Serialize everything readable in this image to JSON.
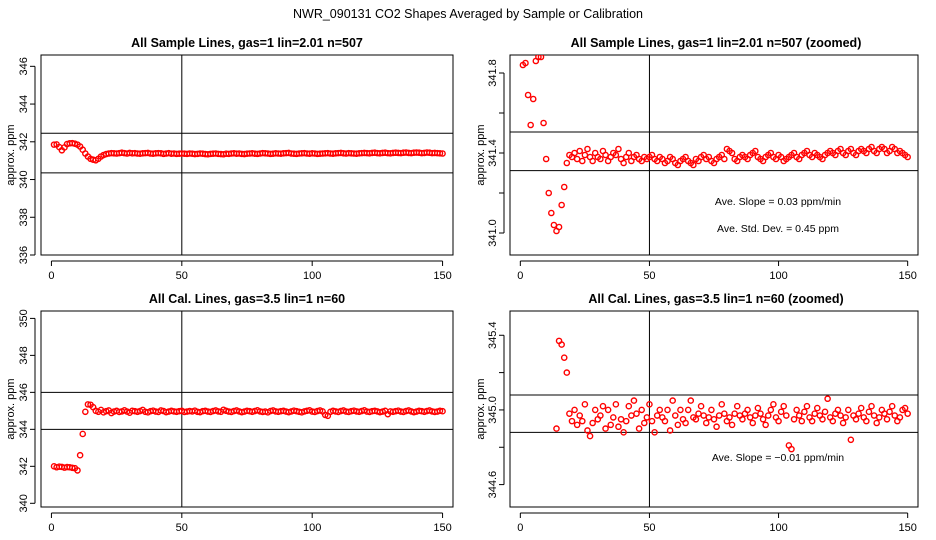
{
  "figure_title": "NWR_090131  CO2 Shapes Averaged by Sample or Calibration",
  "chart_data": [
    {
      "type": "scatter",
      "title": "All Sample Lines, gas=1 lin=2.01 n=507",
      "ylabel": "approx. ppm",
      "xlim": [
        -4,
        154
      ],
      "ylim": [
        336,
        346.6
      ],
      "xticks": [
        0,
        50,
        100,
        150
      ],
      "yticks": [
        336,
        338,
        340,
        342,
        344,
        346
      ],
      "hlines": [
        340.35,
        342.45
      ],
      "vline": 50,
      "annotations": [],
      "x": [
        1,
        2,
        3,
        4,
        5,
        6,
        7,
        8,
        9,
        10,
        11,
        12,
        13,
        14,
        15,
        16,
        17,
        18,
        19,
        20,
        21,
        22,
        23,
        24,
        25,
        26,
        27,
        28,
        29,
        30,
        31,
        32,
        33,
        34,
        35,
        36,
        37,
        38,
        39,
        40,
        41,
        42,
        43,
        44,
        45,
        46,
        47,
        48,
        49,
        50,
        51,
        52,
        53,
        54,
        55,
        56,
        57,
        58,
        59,
        60,
        61,
        62,
        63,
        64,
        65,
        66,
        67,
        68,
        69,
        70,
        71,
        72,
        73,
        74,
        75,
        76,
        77,
        78,
        79,
        80,
        81,
        82,
        83,
        84,
        85,
        86,
        87,
        88,
        89,
        90,
        91,
        92,
        93,
        94,
        95,
        96,
        97,
        98,
        99,
        100,
        101,
        102,
        103,
        104,
        105,
        106,
        107,
        108,
        109,
        110,
        111,
        112,
        113,
        114,
        115,
        116,
        117,
        118,
        119,
        120,
        121,
        122,
        123,
        124,
        125,
        126,
        127,
        128,
        129,
        130,
        131,
        132,
        133,
        134,
        135,
        136,
        137,
        138,
        139,
        140,
        141,
        142,
        143,
        144,
        145,
        146,
        147,
        148,
        149,
        150
      ],
      "y": [
        341.85,
        341.86,
        341.72,
        341.55,
        341.7,
        341.88,
        341.92,
        341.93,
        341.9,
        341.85,
        341.75,
        341.58,
        341.38,
        341.22,
        341.1,
        341.05,
        341.02,
        341.1,
        341.22,
        341.3,
        341.35,
        341.38,
        341.4,
        341.39,
        341.38,
        341.4,
        341.42,
        341.4,
        341.38,
        341.41,
        341.39,
        341.4,
        341.38,
        341.37,
        341.39,
        341.4,
        341.41,
        341.38,
        341.37,
        341.39,
        341.4,
        341.39,
        341.36,
        341.38,
        341.4,
        341.37,
        341.38,
        341.36,
        341.37,
        341.38,
        341.37,
        341.36,
        341.38,
        341.37,
        341.35,
        341.36,
        341.38,
        341.37,
        341.35,
        341.34,
        341.36,
        341.37,
        341.38,
        341.36,
        341.35,
        341.34,
        341.37,
        341.36,
        341.38,
        341.39,
        341.37,
        341.38,
        341.36,
        341.35,
        341.37,
        341.38,
        341.39,
        341.37,
        341.36,
        341.38,
        341.4,
        341.39,
        341.38,
        341.36,
        341.37,
        341.39,
        341.38,
        341.37,
        341.39,
        341.4,
        341.41,
        341.38,
        341.37,
        341.36,
        341.38,
        341.39,
        341.4,
        341.38,
        341.37,
        341.39,
        341.38,
        341.36,
        341.37,
        341.38,
        341.39,
        341.4,
        341.38,
        341.37,
        341.39,
        341.4,
        341.41,
        341.39,
        341.38,
        341.4,
        341.39,
        341.38,
        341.37,
        341.39,
        341.4,
        341.41,
        341.4,
        341.39,
        341.41,
        341.42,
        341.4,
        341.39,
        341.41,
        341.42,
        341.4,
        341.39,
        341.41,
        341.42,
        341.41,
        341.4,
        341.42,
        341.43,
        341.41,
        341.4,
        341.42,
        341.43,
        341.42,
        341.4,
        341.41,
        341.43,
        341.42,
        341.4,
        341.41,
        341.4,
        341.39,
        341.38
      ]
    },
    {
      "type": "scatter",
      "title": "All Sample Lines, gas=1 lin=2.01 n=507 (zoomed)",
      "ylabel": "approx. ppm",
      "xlim": [
        -4,
        154
      ],
      "ylim": [
        340.89,
        341.89
      ],
      "xticks": [
        0,
        50,
        100,
        150
      ],
      "yticks": [
        341.0,
        341.2,
        341.4,
        341.6,
        341.8
      ],
      "ytick_labels": [
        "341.0",
        "",
        "341.4",
        "",
        "341.8"
      ],
      "hlines": [
        341.312,
        341.505
      ],
      "vline": 50,
      "annotations": [
        "Ave. Slope =  0.03  ppm/min",
        "Ave. Std. Dev. =  0.45  ppm"
      ],
      "x": [
        1,
        2,
        3,
        4,
        5,
        6,
        7,
        8,
        9,
        10,
        11,
        12,
        13,
        14,
        15,
        16,
        17,
        18,
        19,
        20,
        21,
        22,
        23,
        24,
        25,
        26,
        27,
        28,
        29,
        30,
        31,
        32,
        33,
        34,
        35,
        36,
        37,
        38,
        39,
        40,
        41,
        42,
        43,
        44,
        45,
        46,
        47,
        48,
        49,
        50,
        51,
        52,
        53,
        54,
        55,
        56,
        57,
        58,
        59,
        60,
        61,
        62,
        63,
        64,
        65,
        66,
        67,
        68,
        69,
        70,
        71,
        72,
        73,
        74,
        75,
        76,
        77,
        78,
        79,
        80,
        81,
        82,
        83,
        84,
        85,
        86,
        87,
        88,
        89,
        90,
        91,
        92,
        93,
        94,
        95,
        96,
        97,
        98,
        99,
        100,
        101,
        102,
        103,
        104,
        105,
        106,
        107,
        108,
        109,
        110,
        111,
        112,
        113,
        114,
        115,
        116,
        117,
        118,
        119,
        120,
        121,
        122,
        123,
        124,
        125,
        126,
        127,
        128,
        129,
        130,
        131,
        132,
        133,
        134,
        135,
        136,
        137,
        138,
        139,
        140,
        141,
        142,
        143,
        144,
        145,
        146,
        147,
        148,
        149,
        150
      ],
      "y": [
        341.84,
        341.85,
        341.69,
        341.54,
        341.67,
        341.86,
        341.88,
        341.88,
        341.55,
        341.37,
        341.2,
        341.1,
        341.04,
        341.01,
        341.03,
        341.14,
        341.23,
        341.35,
        341.39,
        341.38,
        341.4,
        341.37,
        341.41,
        341.36,
        341.39,
        341.42,
        341.38,
        341.36,
        341.4,
        341.38,
        341.37,
        341.41,
        341.39,
        341.36,
        341.38,
        341.4,
        341.39,
        341.42,
        341.37,
        341.35,
        341.38,
        341.4,
        341.36,
        341.38,
        341.39,
        341.37,
        341.36,
        341.38,
        341.37,
        341.38,
        341.39,
        341.37,
        341.36,
        341.38,
        341.37,
        341.35,
        341.36,
        341.38,
        341.37,
        341.35,
        341.34,
        341.36,
        341.37,
        341.38,
        341.36,
        341.35,
        341.34,
        341.37,
        341.36,
        341.38,
        341.39,
        341.37,
        341.38,
        341.36,
        341.35,
        341.37,
        341.38,
        341.39,
        341.37,
        341.42,
        341.41,
        341.4,
        341.37,
        341.36,
        341.38,
        341.39,
        341.38,
        341.37,
        341.39,
        341.4,
        341.41,
        341.38,
        341.37,
        341.36,
        341.38,
        341.39,
        341.4,
        341.38,
        341.37,
        341.39,
        341.38,
        341.36,
        341.37,
        341.38,
        341.39,
        341.4,
        341.38,
        341.37,
        341.39,
        341.4,
        341.41,
        341.39,
        341.38,
        341.4,
        341.39,
        341.38,
        341.37,
        341.39,
        341.4,
        341.41,
        341.4,
        341.39,
        341.41,
        341.42,
        341.4,
        341.39,
        341.41,
        341.42,
        341.4,
        341.39,
        341.41,
        341.42,
        341.41,
        341.4,
        341.42,
        341.43,
        341.41,
        341.4,
        341.42,
        341.43,
        341.42,
        341.4,
        341.41,
        341.43,
        341.42,
        341.4,
        341.41,
        341.4,
        341.39,
        341.38
      ]
    },
    {
      "type": "scatter",
      "title": "All Cal. Lines, gas=3.5 lin=1 n=60",
      "ylabel": "approx. ppm",
      "xlim": [
        -4,
        154
      ],
      "ylim": [
        339.8,
        350.4
      ],
      "xticks": [
        0,
        50,
        100,
        150
      ],
      "yticks": [
        340,
        342,
        344,
        346,
        348,
        350
      ],
      "hlines": [
        344.0,
        346.0
      ],
      "vline": 50,
      "annotations": [],
      "x": [
        1,
        2,
        3,
        4,
        5,
        6,
        7,
        8,
        9,
        10,
        11,
        12,
        13,
        14,
        15,
        16,
        17,
        18,
        19,
        20,
        21,
        22,
        23,
        24,
        25,
        26,
        27,
        28,
        29,
        30,
        31,
        32,
        33,
        34,
        35,
        36,
        37,
        38,
        39,
        40,
        41,
        42,
        43,
        44,
        45,
        46,
        47,
        48,
        49,
        50,
        51,
        52,
        53,
        54,
        55,
        56,
        57,
        58,
        59,
        60,
        61,
        62,
        63,
        64,
        65,
        66,
        67,
        68,
        69,
        70,
        71,
        72,
        73,
        74,
        75,
        76,
        77,
        78,
        79,
        80,
        81,
        82,
        83,
        84,
        85,
        86,
        87,
        88,
        89,
        90,
        91,
        92,
        93,
        94,
        95,
        96,
        97,
        98,
        99,
        100,
        101,
        102,
        103,
        104,
        105,
        106,
        107,
        108,
        109,
        110,
        111,
        112,
        113,
        114,
        115,
        116,
        117,
        118,
        119,
        120,
        121,
        122,
        123,
        124,
        125,
        126,
        127,
        128,
        129,
        130,
        131,
        132,
        133,
        134,
        135,
        136,
        137,
        138,
        139,
        140,
        141,
        142,
        143,
        144,
        145,
        146,
        147,
        148,
        149,
        150
      ],
      "y": [
        342.0,
        341.95,
        341.98,
        341.97,
        341.93,
        341.96,
        341.95,
        341.92,
        341.9,
        341.78,
        342.6,
        343.75,
        344.95,
        345.35,
        345.33,
        345.2,
        345.0,
        344.95,
        345.05,
        344.92,
        344.98,
        345.02,
        344.88,
        344.96,
        345.0,
        344.94,
        344.97,
        345.03,
        344.96,
        344.9,
        345.0,
        344.98,
        344.95,
        344.99,
        345.05,
        344.95,
        344.92,
        344.98,
        345.01,
        344.96,
        344.94,
        345.02,
        344.99,
        344.93,
        344.96,
        345.0,
        344.97,
        344.95,
        344.98,
        345.0,
        344.94,
        344.96,
        344.99,
        344.97,
        345.01,
        344.95,
        344.93,
        344.98,
        345.0,
        344.96,
        344.94,
        344.99,
        345.02,
        344.97,
        344.95,
        345.06,
        345.0,
        344.96,
        344.94,
        344.99,
        345.02,
        344.97,
        344.93,
        344.96,
        345.0,
        344.98,
        344.95,
        344.99,
        345.03,
        344.97,
        344.94,
        344.96,
        344.92,
        344.99,
        345.02,
        344.97,
        344.95,
        344.98,
        345.0,
        344.96,
        344.93,
        344.97,
        345.01,
        344.98,
        344.95,
        344.92,
        344.97,
        345.0,
        345.03,
        344.96,
        344.94,
        344.99,
        345.02,
        344.97,
        344.78,
        344.73,
        344.95,
        345.0,
        344.97,
        344.94,
        344.99,
        345.02,
        344.96,
        344.94,
        344.98,
        345.01,
        344.97,
        344.95,
        344.99,
        345.03,
        344.96,
        344.94,
        344.98,
        345.0,
        344.97,
        344.93,
        344.96,
        345.0,
        344.82,
        344.97,
        344.95,
        344.98,
        345.01,
        344.96,
        344.94,
        344.99,
        345.02,
        344.97,
        344.93,
        344.96,
        345.0,
        344.98,
        344.95,
        344.99,
        345.02,
        344.97,
        344.94,
        344.96,
        345.0,
        344.98
      ]
    },
    {
      "type": "scatter",
      "title": "All Cal. Lines, gas=3.5 lin=1 n=60 (zoomed)",
      "ylabel": "approx. ppm",
      "xlim": [
        -4,
        154
      ],
      "ylim": [
        344.48,
        345.53
      ],
      "xticks": [
        0,
        50,
        100,
        150
      ],
      "yticks": [
        344.6,
        344.8,
        345.0,
        345.2,
        345.4
      ],
      "ytick_labels": [
        "344.6",
        "",
        "345.0",
        "",
        "345.4"
      ],
      "hlines": [
        344.88,
        345.08
      ],
      "vline": 50,
      "annotations": [
        "Ave. Slope =  −0.01  ppm/min"
      ],
      "x": [
        14,
        15,
        16,
        17,
        18,
        19,
        20,
        21,
        22,
        23,
        24,
        25,
        26,
        27,
        28,
        29,
        30,
        31,
        32,
        33,
        34,
        35,
        36,
        37,
        38,
        39,
        40,
        41,
        42,
        43,
        44,
        45,
        46,
        47,
        48,
        49,
        50,
        51,
        52,
        53,
        54,
        55,
        56,
        57,
        58,
        59,
        60,
        61,
        62,
        63,
        64,
        65,
        66,
        67,
        68,
        69,
        70,
        71,
        72,
        73,
        74,
        75,
        76,
        77,
        78,
        79,
        80,
        81,
        82,
        83,
        84,
        85,
        86,
        87,
        88,
        89,
        90,
        91,
        92,
        93,
        94,
        95,
        96,
        97,
        98,
        99,
        100,
        101,
        102,
        103,
        104,
        105,
        106,
        107,
        108,
        109,
        110,
        111,
        112,
        113,
        114,
        115,
        116,
        117,
        118,
        119,
        120,
        121,
        122,
        123,
        124,
        125,
        126,
        127,
        128,
        129,
        130,
        131,
        132,
        133,
        134,
        135,
        136,
        137,
        138,
        139,
        140,
        141,
        142,
        143,
        144,
        145,
        146,
        147,
        148,
        149,
        150
      ],
      "y": [
        344.9,
        345.37,
        345.35,
        345.28,
        345.2,
        344.98,
        344.94,
        345.0,
        344.92,
        344.97,
        344.94,
        345.03,
        344.89,
        344.86,
        344.93,
        345.0,
        344.95,
        344.97,
        345.02,
        344.9,
        345.0,
        344.92,
        344.96,
        345.03,
        344.91,
        344.95,
        344.88,
        344.94,
        345.02,
        344.97,
        345.05,
        344.98,
        344.9,
        345.0,
        344.93,
        344.96,
        345.03,
        344.94,
        344.88,
        344.97,
        345.0,
        344.96,
        344.94,
        345.0,
        344.89,
        345.05,
        344.97,
        344.92,
        345.0,
        344.95,
        344.93,
        345.0,
        345.05,
        344.96,
        344.95,
        344.98,
        345.02,
        344.97,
        344.93,
        344.96,
        345.0,
        344.95,
        344.91,
        344.97,
        345.03,
        344.98,
        344.94,
        344.96,
        344.92,
        344.98,
        345.02,
        344.97,
        344.95,
        344.98,
        345.0,
        344.96,
        344.93,
        344.97,
        345.01,
        344.98,
        344.95,
        344.92,
        344.97,
        345.0,
        345.03,
        344.96,
        344.94,
        344.99,
        345.02,
        344.97,
        344.81,
        344.79,
        344.95,
        345.0,
        344.97,
        344.94,
        344.99,
        345.02,
        344.96,
        344.94,
        344.98,
        345.01,
        344.97,
        344.95,
        344.99,
        345.06,
        344.96,
        344.94,
        344.98,
        345.0,
        344.97,
        344.93,
        344.96,
        345.0,
        344.84,
        344.97,
        344.95,
        344.98,
        345.01,
        344.96,
        344.94,
        344.99,
        345.02,
        344.97,
        344.93,
        344.96,
        345.0,
        344.98,
        344.95,
        344.99,
        345.02,
        344.97,
        344.94,
        344.96,
        345.0,
        345.01,
        344.98
      ]
    }
  ]
}
